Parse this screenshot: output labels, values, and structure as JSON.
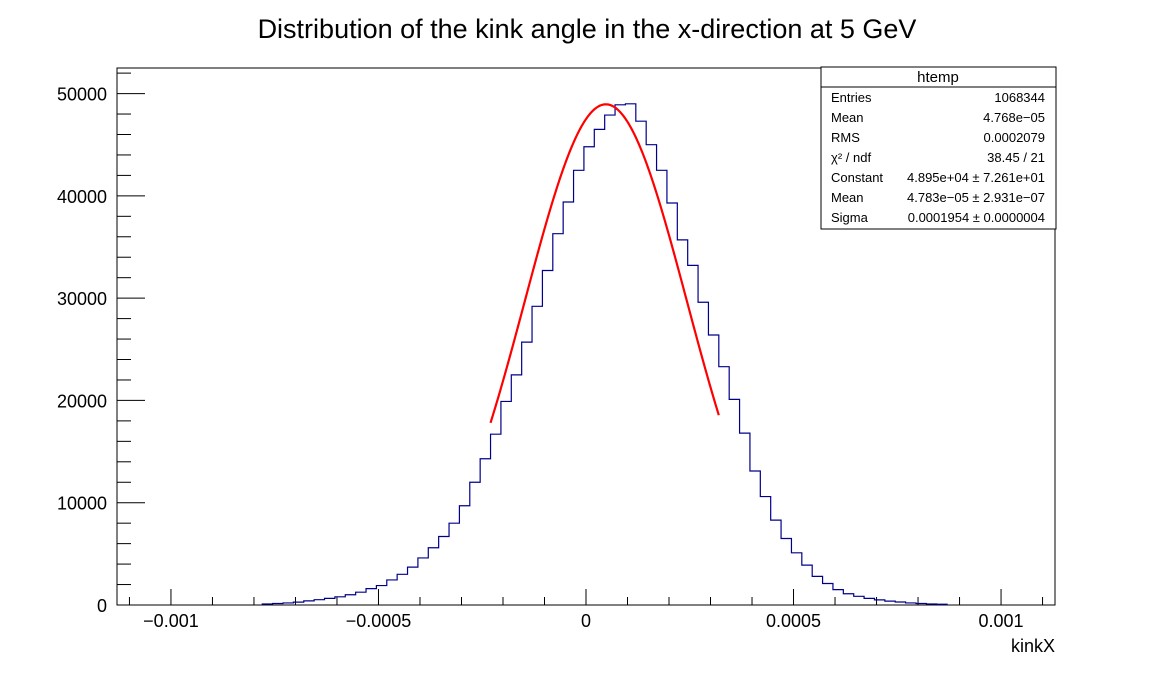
{
  "chart_data": {
    "type": "bar",
    "title": "Distribution of the kink angle in the x-direction at 5 GeV",
    "xlabel": "kinkX",
    "ylabel": "",
    "xlim": [
      -0.00113,
      0.00113
    ],
    "ylim": [
      0,
      52500
    ],
    "x_ticks": [
      {
        "value": -0.001,
        "label": "−0.001"
      },
      {
        "value": -0.0005,
        "label": "−0.0005"
      },
      {
        "value": 0,
        "label": "0"
      },
      {
        "value": 0.0005,
        "label": "0.0005"
      },
      {
        "value": 0.001,
        "label": "0.001"
      }
    ],
    "y_ticks": [
      {
        "value": 0,
        "label": "0"
      },
      {
        "value": 10000,
        "label": "10000"
      },
      {
        "value": 20000,
        "label": "20000"
      },
      {
        "value": 30000,
        "label": "30000"
      },
      {
        "value": 40000,
        "label": "40000"
      },
      {
        "value": 50000,
        "label": "50000"
      }
    ],
    "histogram": {
      "name": "htemp",
      "bin_start": -0.00078,
      "bin_width": 2.5e-05,
      "values": [
        100,
        150,
        200,
        280,
        400,
        520,
        650,
        800,
        1000,
        1250,
        1600,
        1900,
        2450,
        3000,
        3700,
        4600,
        5600,
        6700,
        8000,
        9700,
        12000,
        14300,
        16700,
        19900,
        22500,
        25700,
        29200,
        32700,
        36300,
        39400,
        42500,
        44800,
        46500,
        47900,
        48900,
        49000,
        47300,
        45000,
        42500,
        39300,
        35700,
        33200,
        29600,
        26400,
        23300,
        20100,
        16800,
        13100,
        10600,
        8300,
        6500,
        5100,
        3900,
        2800,
        2100,
        1500,
        1100,
        850,
        650,
        500,
        380,
        290,
        200,
        150,
        100,
        70
      ]
    },
    "fit": {
      "type": "gaus",
      "color": "#ff0000",
      "constant": 48950,
      "mean": 4.783e-05,
      "sigma": 0.0001954,
      "range": [
        -0.00023,
        0.00032
      ]
    },
    "line_colors": {
      "histogram": "#00008b",
      "fit": "#ff0000"
    },
    "grid": false,
    "legend": "top-right"
  },
  "stats_box": {
    "title": "htemp",
    "rows": [
      {
        "label": "Entries",
        "value": "1068344"
      },
      {
        "label": "Mean",
        "value": "4.768e−05"
      },
      {
        "label": "RMS",
        "value": "0.0002079"
      },
      {
        "label": "χ² / ndf",
        "value": "38.45 / 21"
      },
      {
        "label": "Constant",
        "value": "4.895e+04 ± 7.261e+01"
      },
      {
        "label": "Mean",
        "value": "4.783e−05 ± 2.931e−07"
      },
      {
        "label": "Sigma",
        "value": "0.0001954 ± 0.0000004"
      }
    ]
  }
}
